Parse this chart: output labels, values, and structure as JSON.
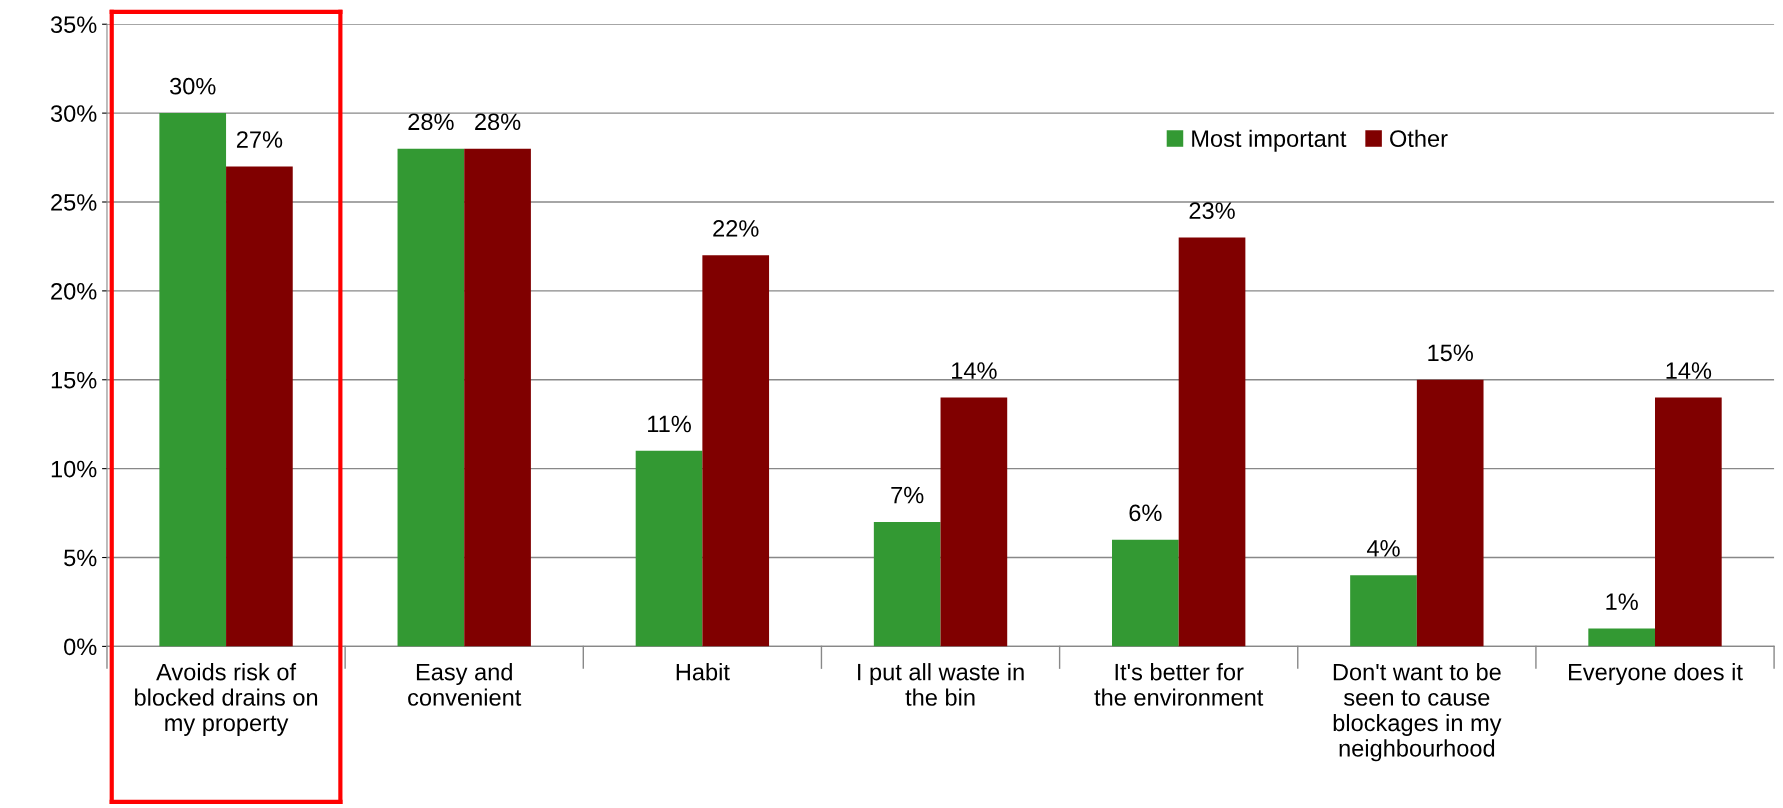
{
  "chart_data": {
    "type": "bar",
    "categories": [
      "Avoids risk of blocked drains on my property",
      "Easy and convenient",
      "Habit",
      "I put all waste in the bin",
      "It's better for the environment",
      "Don't want to be seen to cause blockages in my neighbourhood",
      "Everyone does it"
    ],
    "series": [
      {
        "name": "Most important",
        "color": "#339933",
        "values": [
          30,
          28,
          11,
          7,
          6,
          4,
          1
        ],
        "value_labels": [
          "30%",
          "28%",
          "11%",
          "7%",
          "6%",
          "4%",
          "1%"
        ]
      },
      {
        "name": "Other",
        "color": "#800000",
        "values": [
          27,
          28,
          22,
          14,
          23,
          15,
          14
        ],
        "value_labels": [
          "27%",
          "28%",
          "22%",
          "14%",
          "23%",
          "15%",
          "14%"
        ]
      }
    ],
    "ylim": [
      0,
      35
    ],
    "yticks": [
      {
        "value": 0,
        "label": "0%"
      },
      {
        "value": 5,
        "label": "5%"
      },
      {
        "value": 10,
        "label": "10%"
      },
      {
        "value": 15,
        "label": "15%"
      },
      {
        "value": 20,
        "label": "20%"
      },
      {
        "value": 25,
        "label": "25%"
      },
      {
        "value": 30,
        "label": "30%"
      },
      {
        "value": 35,
        "label": "35%"
      }
    ],
    "grid": "y",
    "legend": "top right"
  }
}
